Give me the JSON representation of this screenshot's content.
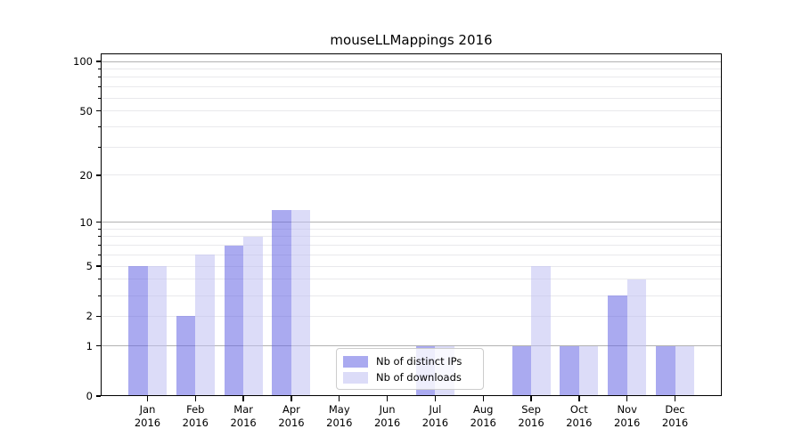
{
  "title": "mouseLLMappings 2016",
  "chart_data": {
    "type": "bar",
    "title": "mouseLLMappings 2016",
    "categories": [
      "Jan 2016",
      "Feb 2016",
      "Mar 2016",
      "Apr 2016",
      "May 2016",
      "Jun 2016",
      "Jul 2016",
      "Aug 2016",
      "Sep 2016",
      "Oct 2016",
      "Nov 2016",
      "Dec 2016"
    ],
    "series": [
      {
        "name": "Nb of distinct IPs",
        "color": "#aaaaf0",
        "values": [
          5,
          2,
          7,
          12,
          0,
          0,
          1,
          0,
          1,
          1,
          3,
          1
        ]
      },
      {
        "name": "Nb of downloads",
        "color": "#dcdcf8",
        "values": [
          5,
          6,
          8,
          12,
          0,
          0,
          1,
          0,
          5,
          1,
          4,
          1
        ]
      }
    ],
    "xlabel": "",
    "ylabel": "",
    "yscale": "log1p",
    "ylim": [
      0,
      112
    ],
    "yticks": [
      0,
      1,
      2,
      5,
      10,
      20,
      50,
      100
    ],
    "grid": {
      "major": [
        1,
        10,
        100
      ],
      "minor": [
        2,
        3,
        4,
        5,
        6,
        7,
        8,
        9,
        20,
        30,
        40,
        50,
        60,
        70,
        80,
        90
      ]
    },
    "y_minor_ticks": [
      3,
      4,
      6,
      7,
      8,
      9,
      30,
      40,
      60,
      70,
      80,
      90
    ],
    "legend_position": "bottom-center",
    "grid_on": true
  },
  "colors": {
    "background": "#ffffff",
    "spine": "#000000",
    "major_grid": "#b2b2b2",
    "minor_grid": "#e9e9ec",
    "legend_border": "#cccccc",
    "series1": "#aaaaf0",
    "series2": "#dcdcf8"
  }
}
